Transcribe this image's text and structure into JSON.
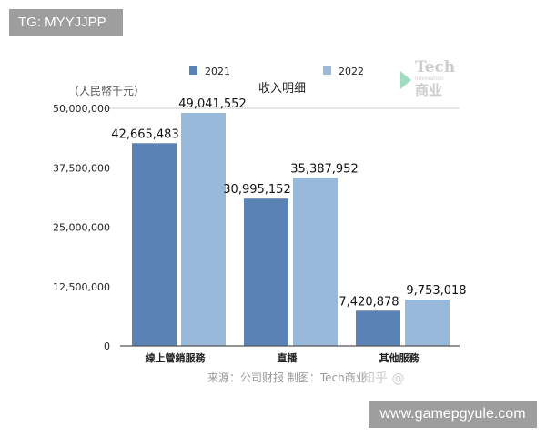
{
  "watermark_top": "TG: MYYJJPP",
  "watermark_bottom": "www.gamepgyule.com",
  "source_note": "来源：公司财报 制图：Tech商业",
  "zhihu_watermark": "知乎 @",
  "logo": {
    "line1": "Tech",
    "line2": "innovation",
    "line3": "商业"
  },
  "chart_data": {
    "type": "bar",
    "title": "收入明细",
    "ylabel": "（人民幣千元）",
    "xlabel": "",
    "categories": [
      "線上營銷服務",
      "直播",
      "其他服務"
    ],
    "series": [
      {
        "name": "2021",
        "color": "#5b82b5",
        "values": [
          42665483,
          30995152,
          7420878
        ],
        "labels": [
          "42,665,483",
          "30,995,152",
          "7,420,878"
        ]
      },
      {
        "name": "2022",
        "color": "#98b9da",
        "values": [
          49041552,
          35387952,
          9753018
        ],
        "labels": [
          "49,041,552",
          "35,387,952",
          "9,753,018"
        ]
      }
    ],
    "ylim": [
      0,
      50000000
    ],
    "yticks": [
      0,
      12500000,
      25000000,
      37500000,
      50000000
    ],
    "ytick_labels": [
      "0",
      "12,500,000",
      "25,000,000",
      "37,500,000",
      "50,000,000"
    ],
    "grid": "top line only",
    "legend": "top"
  }
}
